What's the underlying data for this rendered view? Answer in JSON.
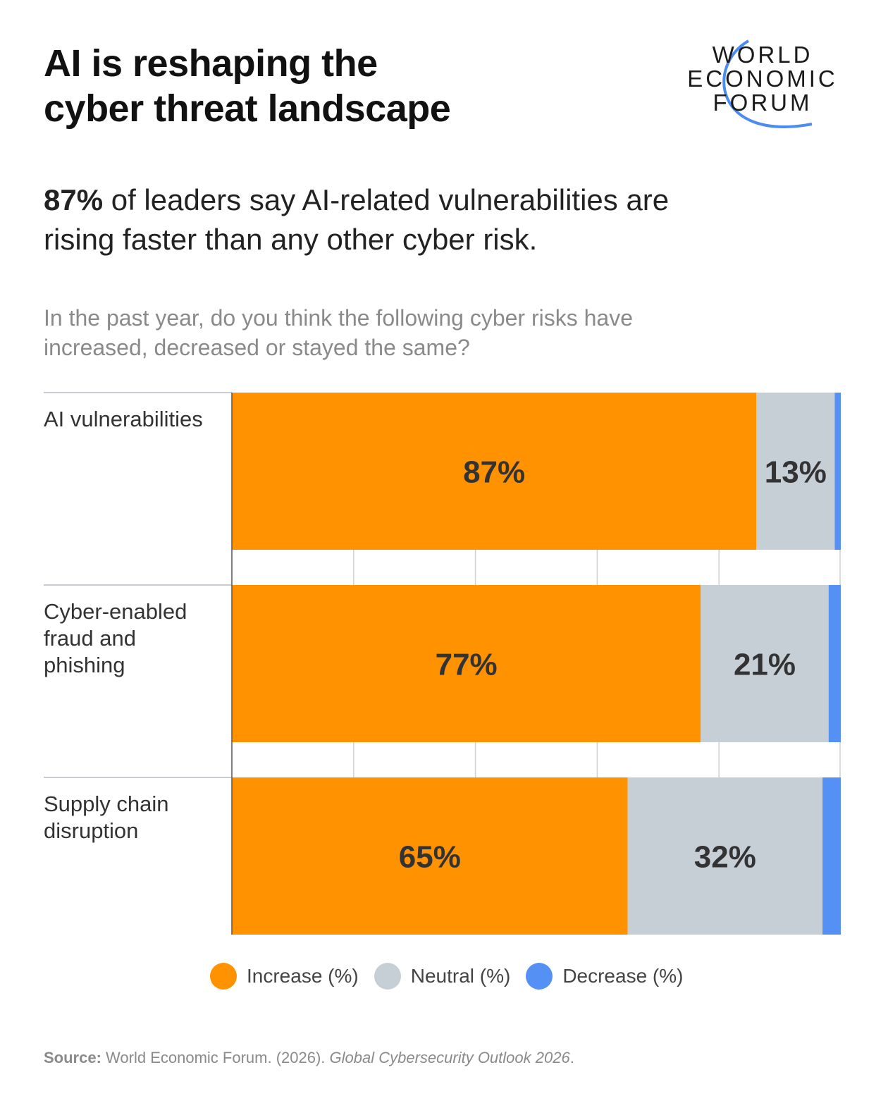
{
  "title_line1": "AI is reshaping the",
  "title_line2": "cyber threat landscape",
  "logo": {
    "line1": "WORLD",
    "line2": "ECONOMIC",
    "line3": "FORUM",
    "arc_color": "#4a8cf0"
  },
  "subtitle": {
    "highlight": "87%",
    "rest": " of leaders say AI-related vulnerabilities are rising faster than any other cyber risk."
  },
  "question": "In the past year, do you think the following cyber risks have increased, decreased or stayed the same?",
  "chart_data": {
    "type": "bar",
    "orientation": "horizontal",
    "stacked": true,
    "categories": [
      "AI vulnerabilities",
      "Cyber-enabled fraud and phishing",
      "Supply chain disruption"
    ],
    "series": [
      {
        "name": "Increase (%)",
        "values": [
          87,
          77,
          65
        ],
        "color": "#ff9200",
        "labels": [
          "87%",
          "77%",
          "65%"
        ]
      },
      {
        "name": "Neutral (%)",
        "values": [
          13,
          21,
          32
        ],
        "color": "#c6ced6",
        "labels": [
          "13%",
          "21%",
          "32%"
        ]
      },
      {
        "name": "Decrease (%)",
        "values": [
          1,
          2,
          3
        ],
        "color": "#5591f5"
      }
    ],
    "xlim": [
      0,
      100
    ],
    "grid": true,
    "legend": "bottom"
  },
  "source": {
    "label": "Source:",
    "text": " World Economic Forum. (2026). ",
    "italic": "Global Cybersecurity Outlook 2026",
    "end": "."
  }
}
